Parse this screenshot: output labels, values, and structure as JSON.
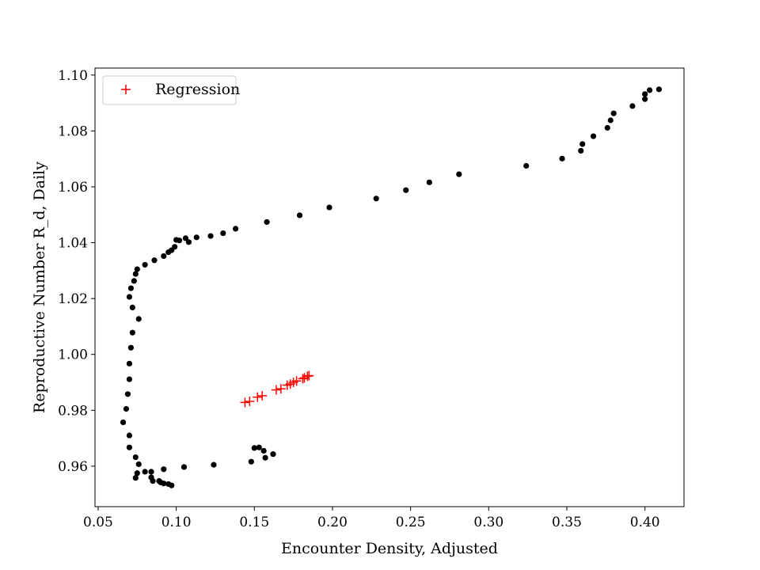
{
  "chart_data": {
    "type": "scatter",
    "title": "",
    "xlabel": "Encounter Density, Adjusted",
    "ylabel": "Reproductive Number R_d, Daily",
    "xlim": [
      0.048,
      0.425
    ],
    "ylim": [
      0.9455,
      1.1025
    ],
    "xticks": [
      0.05,
      0.1,
      0.15,
      0.2,
      0.25,
      0.3,
      0.35,
      0.4
    ],
    "xtick_labels": [
      "0.05",
      "0.10",
      "0.15",
      "0.20",
      "0.25",
      "0.30",
      "0.35",
      "0.40"
    ],
    "yticks": [
      0.96,
      0.98,
      1.0,
      1.02,
      1.04,
      1.06,
      1.08,
      1.1
    ],
    "ytick_labels": [
      "0.96",
      "0.98",
      "1.00",
      "1.02",
      "1.04",
      "1.06",
      "1.08",
      "1.10"
    ],
    "grid": false,
    "legend": {
      "placement": "upper-left",
      "entries": [
        "Regression"
      ]
    },
    "series": [
      {
        "marker": "circle",
        "color": "#000000",
        "points": [
          [
            0.066,
            0.9757
          ],
          [
            0.068,
            0.9805
          ],
          [
            0.069,
            0.9858
          ],
          [
            0.07,
            0.9911
          ],
          [
            0.07,
            0.9967
          ],
          [
            0.071,
            1.0024
          ],
          [
            0.072,
            1.0078
          ],
          [
            0.076,
            1.0127
          ],
          [
            0.072,
            1.0168
          ],
          [
            0.07,
            1.0206
          ],
          [
            0.071,
            1.0237
          ],
          [
            0.073,
            1.0263
          ],
          [
            0.074,
            1.0288
          ],
          [
            0.075,
            1.0305
          ],
          [
            0.08,
            1.0321
          ],
          [
            0.086,
            1.0337
          ],
          [
            0.092,
            1.0352
          ],
          [
            0.095,
            1.0366
          ],
          [
            0.097,
            1.0373
          ],
          [
            0.099,
            1.0385
          ],
          [
            0.1,
            1.041
          ],
          [
            0.102,
            1.0408
          ],
          [
            0.106,
            1.0416
          ],
          [
            0.108,
            1.0402
          ],
          [
            0.113,
            1.0419
          ],
          [
            0.122,
            1.0424
          ],
          [
            0.13,
            1.0434
          ],
          [
            0.138,
            1.045
          ],
          [
            0.158,
            1.0474
          ],
          [
            0.179,
            1.0498
          ],
          [
            0.198,
            1.0526
          ],
          [
            0.228,
            1.0558
          ],
          [
            0.247,
            1.0588
          ],
          [
            0.262,
            1.0616
          ],
          [
            0.281,
            1.0645
          ],
          [
            0.324,
            1.0675
          ],
          [
            0.347,
            1.0701
          ],
          [
            0.359,
            1.0729
          ],
          [
            0.36,
            1.0753
          ],
          [
            0.367,
            1.0781
          ],
          [
            0.376,
            1.0811
          ],
          [
            0.378,
            1.0838
          ],
          [
            0.38,
            1.0863
          ],
          [
            0.392,
            1.0889
          ],
          [
            0.4,
            1.0914
          ],
          [
            0.4,
            1.0932
          ],
          [
            0.403,
            1.0946
          ],
          [
            0.409,
            1.0949
          ],
          [
            0.07,
            0.971
          ],
          [
            0.07,
            0.9667
          ],
          [
            0.074,
            0.9632
          ],
          [
            0.076,
            0.9607
          ],
          [
            0.075,
            0.9575
          ],
          [
            0.074,
            0.9558
          ],
          [
            0.08,
            0.958
          ],
          [
            0.084,
            0.958
          ],
          [
            0.084,
            0.956
          ],
          [
            0.085,
            0.9547
          ],
          [
            0.089,
            0.9547
          ],
          [
            0.09,
            0.9542
          ],
          [
            0.092,
            0.9538
          ],
          [
            0.095,
            0.9536
          ],
          [
            0.097,
            0.9531
          ],
          [
            0.092,
            0.9589
          ],
          [
            0.105,
            0.9597
          ],
          [
            0.124,
            0.9605
          ],
          [
            0.148,
            0.9616
          ],
          [
            0.15,
            0.9665
          ],
          [
            0.153,
            0.9667
          ],
          [
            0.156,
            0.9655
          ],
          [
            0.157,
            0.963
          ],
          [
            0.162,
            0.9643
          ]
        ]
      },
      {
        "name": "Regression",
        "marker": "plus",
        "color": "#ff0000",
        "points": [
          [
            0.144,
            0.9828
          ],
          [
            0.147,
            0.9832
          ],
          [
            0.152,
            0.9847
          ],
          [
            0.155,
            0.9852
          ],
          [
            0.164,
            0.9873
          ],
          [
            0.167,
            0.9877
          ],
          [
            0.171,
            0.989
          ],
          [
            0.173,
            0.9894
          ],
          [
            0.175,
            0.99
          ],
          [
            0.177,
            0.9905
          ],
          [
            0.181,
            0.9913
          ],
          [
            0.182,
            0.9916
          ],
          [
            0.184,
            0.9922
          ],
          [
            0.185,
            0.9924
          ]
        ]
      }
    ]
  }
}
